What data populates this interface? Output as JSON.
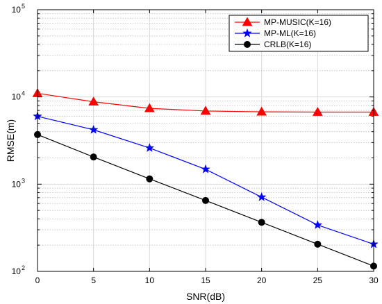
{
  "chart_data": {
    "type": "line",
    "title": "",
    "xlabel": "SNR(dB)",
    "ylabel": "RMSE(m)",
    "x": [
      0,
      5,
      10,
      15,
      20,
      25,
      30
    ],
    "xticks": [
      "0",
      "5",
      "10",
      "15",
      "20",
      "25",
      "30"
    ],
    "xlim": [
      0,
      30
    ],
    "ylim": [
      100,
      100000
    ],
    "yscale": "log",
    "ytick_exponents": [
      "2",
      "3",
      "4",
      "5"
    ],
    "ytick_base": "10",
    "grid": true,
    "legend_position": "top-right",
    "series": [
      {
        "name": "MP-MUSIC(K=16)",
        "color": "#ff0000",
        "marker": "triangle",
        "values": [
          11000,
          8800,
          7400,
          6900,
          6750,
          6700,
          6700
        ]
      },
      {
        "name": "MP-ML(K=16)",
        "color": "#0000ff",
        "marker": "star",
        "values": [
          6000,
          4200,
          2600,
          1480,
          710,
          340,
          205
        ]
      },
      {
        "name": "CRLB(K=16)",
        "color": "#000000",
        "marker": "circle",
        "values": [
          3700,
          2050,
          1150,
          650,
          365,
          205,
          115
        ]
      }
    ]
  }
}
